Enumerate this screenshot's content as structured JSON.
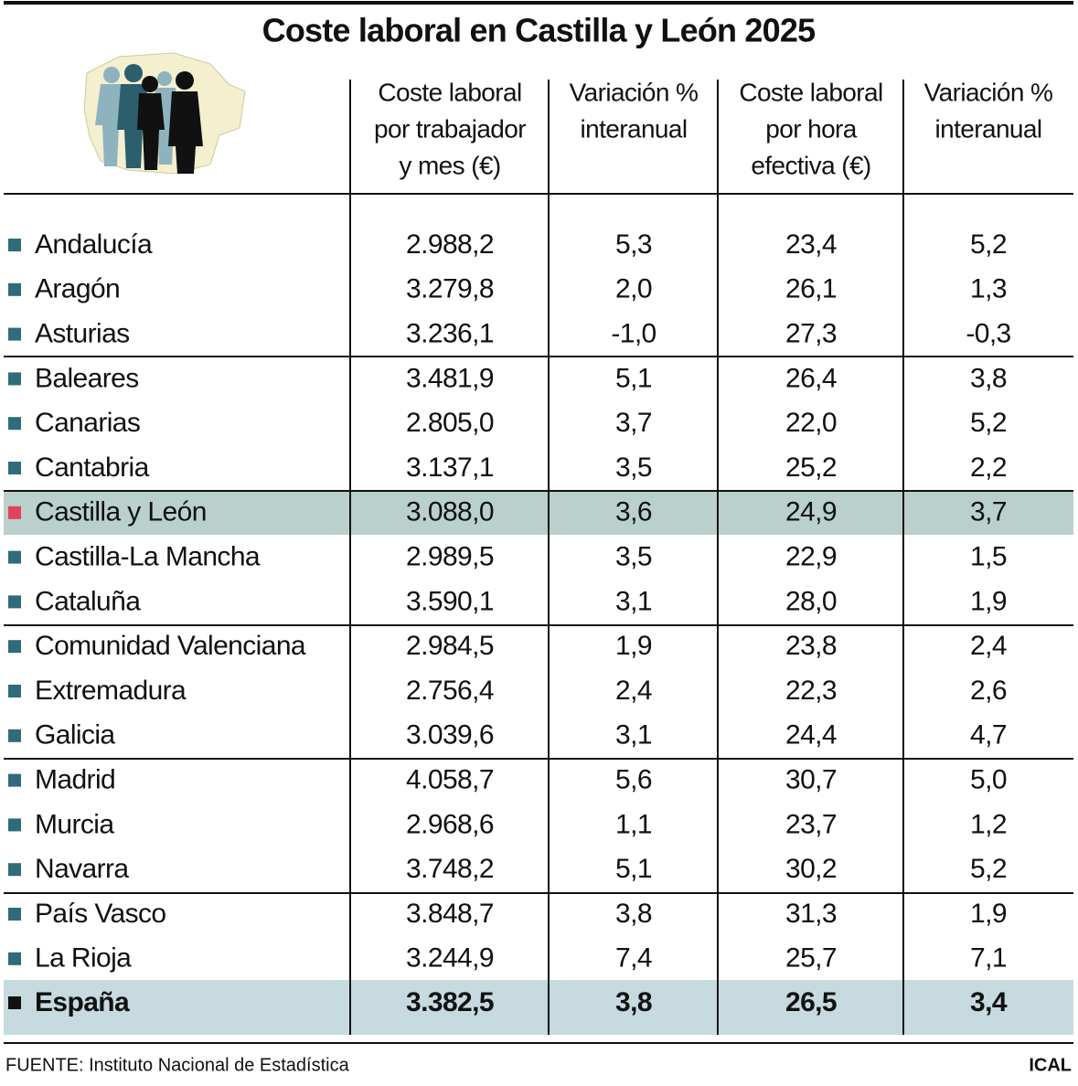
{
  "title": "Coste laboral en Castilla y León 2025",
  "headers": [
    {
      "lines": [
        "Coste laboral",
        "por trabajador",
        "y mes (€)"
      ]
    },
    {
      "lines": [
        "Variación %",
        "interanual"
      ]
    },
    {
      "lines": [
        "Coste laboral",
        "por hora",
        "efectiva (€)"
      ]
    },
    {
      "lines": [
        "Variación %",
        "interanual"
      ]
    }
  ],
  "rows": [
    [
      "Andalucía",
      "2.988,2",
      "5,3",
      "23,4",
      "5,2"
    ],
    [
      "Aragón",
      "3.279,8",
      "2,0",
      "26,1",
      "1,3"
    ],
    [
      "Asturias",
      "3.236,1",
      "-1,0",
      "27,3",
      "-0,3"
    ],
    [
      "Baleares",
      "3.481,9",
      "5,1",
      "26,4",
      "3,8"
    ],
    [
      "Canarias",
      "2.805,0",
      "3,7",
      "22,0",
      "5,2"
    ],
    [
      "Cantabria",
      "3.137,1",
      "3,5",
      "25,2",
      "2,2"
    ],
    [
      "Castilla y León",
      "3.088,0",
      "3,6",
      "24,9",
      "3,7"
    ],
    [
      "Castilla-La Mancha",
      "2.989,5",
      "3,5",
      "22,9",
      "1,5"
    ],
    [
      "Cataluña",
      "3.590,1",
      "3,1",
      "28,0",
      "1,9"
    ],
    [
      "Comunidad Valenciana",
      "2.984,5",
      "1,9",
      "23,8",
      "2,4"
    ],
    [
      "Extremadura",
      "2.756,4",
      "2,4",
      "22,3",
      "2,6"
    ],
    [
      "Galicia",
      "3.039,6",
      "3,1",
      "24,4",
      "4,7"
    ],
    [
      "Madrid",
      "4.058,7",
      "5,6",
      "30,7",
      "5,0"
    ],
    [
      "Murcia",
      "2.968,6",
      "1,1",
      "23,7",
      "1,2"
    ],
    [
      "Navarra",
      "3.748,2",
      "5,1",
      "30,2",
      "5,2"
    ],
    [
      "País Vasco",
      "3.848,7",
      "3,8",
      "31,3",
      "1,9"
    ],
    [
      "La Rioja",
      "3.244,9",
      "7,4",
      "25,7",
      "7,1"
    ],
    [
      "España",
      "3.382,5",
      "3,8",
      "26,5",
      "3,4"
    ]
  ],
  "source": "FUENTE: Instituto Nacional de Estadística",
  "credit": "ICAL"
}
